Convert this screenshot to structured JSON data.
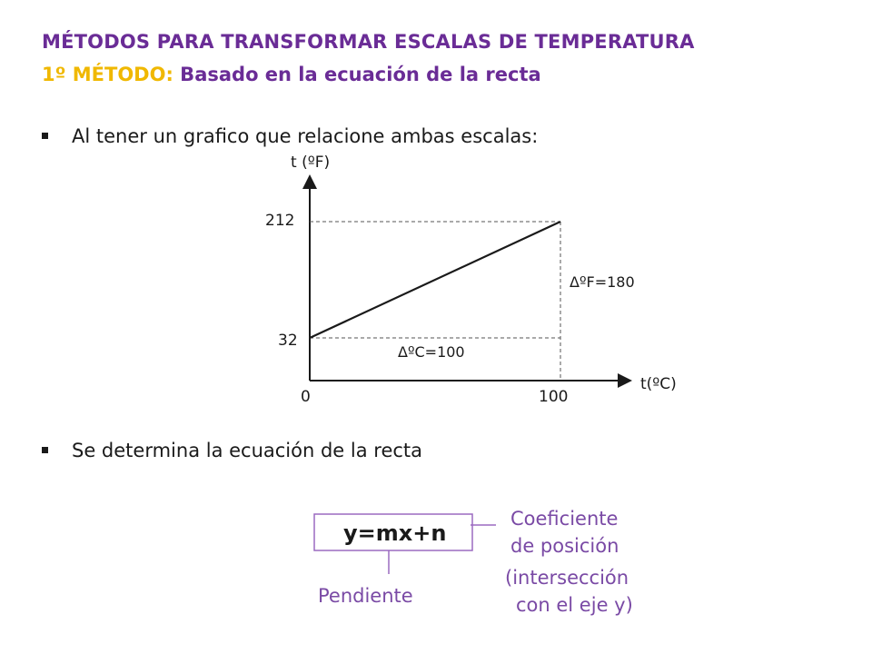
{
  "heading": {
    "line1": "MÉTODOS PARA TRANSFORMAR ESCALAS DE TEMPERATURA",
    "line2_prefix": "1º MÉTODO:",
    "line2_rest": " Basado en la ecuación de la recta"
  },
  "bullets": [
    "Al tener un grafico que relacione ambas escalas:",
    "Se determina la ecuación de la recta"
  ],
  "chart_data": {
    "type": "line",
    "xlabel": "t(ºC)",
    "ylabel": "t (ºF)",
    "x_ticks": [
      "0",
      "100"
    ],
    "y_ticks": [
      "212",
      "32"
    ],
    "series": [
      {
        "x": [
          0,
          100
        ],
        "y": [
          32,
          212
        ]
      }
    ],
    "annotations": [
      "ΔºF=180",
      "ΔºC=100"
    ]
  },
  "equation": {
    "formula": "y=mx+n",
    "coef_label_1": "Coeficiente",
    "coef_label_2": "de posición",
    "coef_note_1": "(intersección",
    "coef_note_2": "con el eje y)",
    "slope_label": "Pendiente"
  },
  "colors": {
    "purple": "#6a2c96",
    "yellow": "#f0b800",
    "label_purple": "#7a4aa5"
  }
}
